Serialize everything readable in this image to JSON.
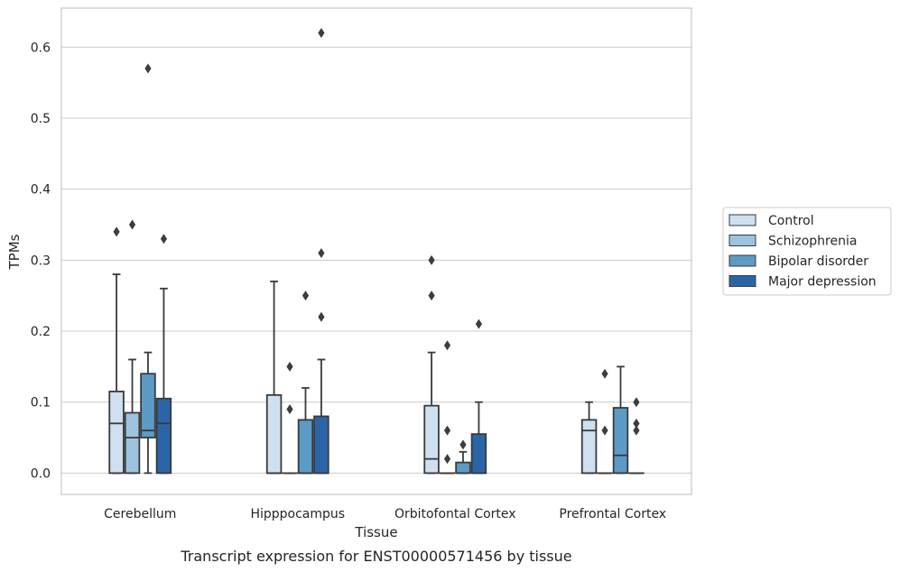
{
  "chart_data": {
    "type": "box",
    "title": "",
    "caption": "Transcript expression for ENST00000571456 by tissue",
    "xlabel": "Tissue",
    "ylabel": "TPMs",
    "ylim": [
      -0.03,
      0.655
    ],
    "yticks": [
      "0.0",
      "0.1",
      "0.2",
      "0.3",
      "0.4",
      "0.5",
      "0.6"
    ],
    "ytick_values": [
      0,
      0.1,
      0.2,
      0.3,
      0.4,
      0.5,
      0.6
    ],
    "grid": "horizontal",
    "legend_position": "right",
    "categories": [
      "Cerebellum",
      "Hipppocampus",
      "Orbitofontal Cortex",
      "Prefrontal Cortex"
    ],
    "series": [
      {
        "name": "Control",
        "color": "#cfe0f0",
        "boxes": [
          {
            "q1": 0,
            "median": 0.07,
            "q3": 0.115,
            "whisker_low": 0,
            "whisker_high": 0.28,
            "outliers": [
              0.34
            ]
          },
          {
            "q1": 0,
            "median": 0,
            "q3": 0.11,
            "whisker_low": 0,
            "whisker_high": 0.27,
            "outliers": []
          },
          {
            "q1": 0,
            "median": 0.02,
            "q3": 0.095,
            "whisker_low": 0,
            "whisker_high": 0.17,
            "outliers": [
              0.25,
              0.3
            ]
          },
          {
            "q1": 0,
            "median": 0.06,
            "q3": 0.075,
            "whisker_low": 0,
            "whisker_high": 0.1,
            "outliers": []
          }
        ]
      },
      {
        "name": "Schizophrenia",
        "color": "#9dc3de",
        "boxes": [
          {
            "q1": 0,
            "median": 0.05,
            "q3": 0.085,
            "whisker_low": 0,
            "whisker_high": 0.16,
            "outliers": [
              0.35
            ]
          },
          {
            "q1": 0,
            "median": 0,
            "q3": 0,
            "whisker_low": 0,
            "whisker_high": 0,
            "outliers": [
              0.09,
              0.15
            ]
          },
          {
            "q1": 0,
            "median": 0,
            "q3": 0,
            "whisker_low": 0,
            "whisker_high": 0,
            "outliers": [
              0.02,
              0.06,
              0.18
            ]
          },
          {
            "q1": 0,
            "median": 0,
            "q3": 0,
            "whisker_low": 0,
            "whisker_high": 0,
            "outliers": [
              0.06,
              0.14
            ]
          }
        ]
      },
      {
        "name": "Bipolar disorder",
        "color": "#5b9bc6",
        "boxes": [
          {
            "q1": 0.05,
            "median": 0.06,
            "q3": 0.14,
            "whisker_low": 0,
            "whisker_high": 0.17,
            "outliers": [
              0.57
            ]
          },
          {
            "q1": 0,
            "median": 0,
            "q3": 0.075,
            "whisker_low": 0,
            "whisker_high": 0.12,
            "outliers": [
              0.25
            ]
          },
          {
            "q1": 0,
            "median": 0,
            "q3": 0.015,
            "whisker_low": 0,
            "whisker_high": 0.03,
            "outliers": [
              0.04
            ]
          },
          {
            "q1": 0,
            "median": 0.025,
            "q3": 0.092,
            "whisker_low": 0,
            "whisker_high": 0.15,
            "outliers": []
          }
        ]
      },
      {
        "name": "Major depression",
        "color": "#2a66a7",
        "boxes": [
          {
            "q1": 0,
            "median": 0.07,
            "q3": 0.105,
            "whisker_low": 0,
            "whisker_high": 0.26,
            "outliers": [
              0.33
            ]
          },
          {
            "q1": 0,
            "median": 0,
            "q3": 0.08,
            "whisker_low": 0,
            "whisker_high": 0.16,
            "outliers": [
              0.22,
              0.31,
              0.62
            ]
          },
          {
            "q1": 0,
            "median": 0,
            "q3": 0.055,
            "whisker_low": 0,
            "whisker_high": 0.1,
            "outliers": [
              0.21
            ]
          },
          {
            "q1": 0,
            "median": 0,
            "q3": 0,
            "whisker_low": 0,
            "whisker_high": 0,
            "outliers": [
              0.06,
              0.07,
              0.1
            ]
          }
        ]
      }
    ]
  }
}
